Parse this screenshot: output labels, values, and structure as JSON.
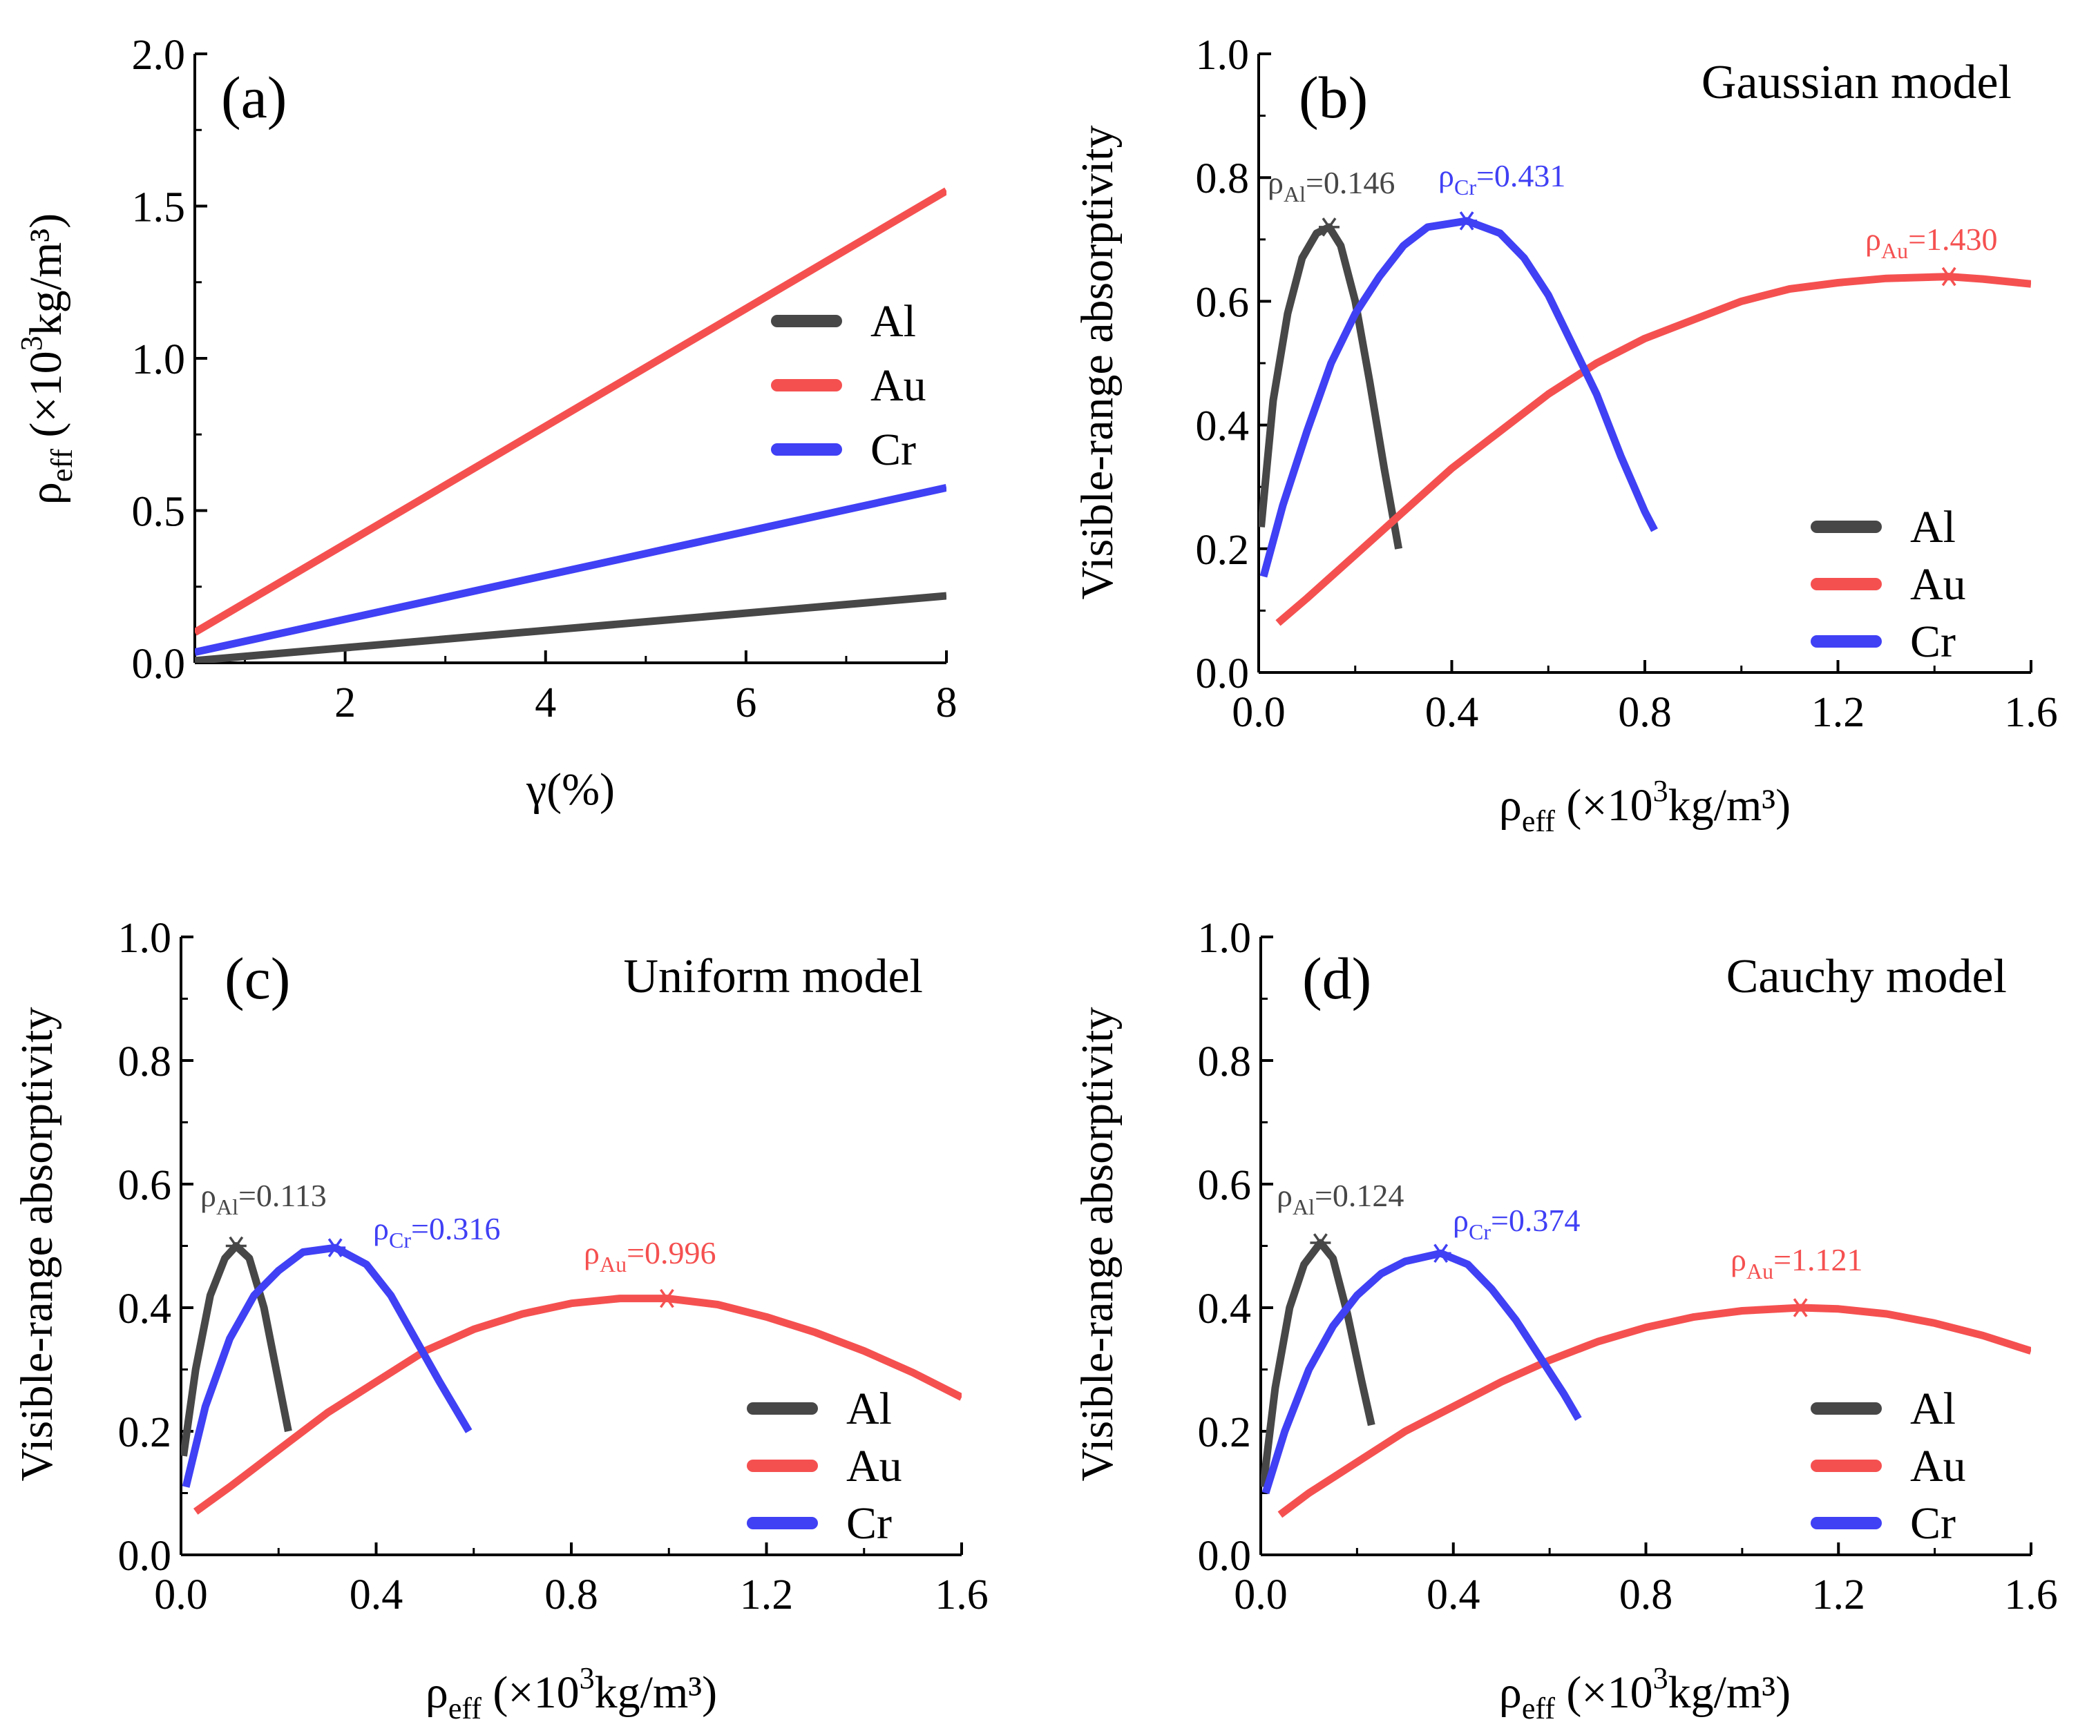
{
  "colors": {
    "Al": "#474747",
    "Au": "#f55050",
    "Cr": "#4040f5",
    "axis": "#000000"
  },
  "chart_data": [
    {
      "id": "a",
      "type": "line",
      "panel_label": "(a)",
      "title": "",
      "xlabel": "γ(%)",
      "ylabel": {
        "base": "ρ",
        "sub": "eff",
        "rest": " (×10",
        "sup": "3",
        "unit": "kg/m³)"
      },
      "xlim": [
        0.5,
        8
      ],
      "ylim": [
        0,
        2.0
      ],
      "xticks": [
        2,
        4,
        6,
        8
      ],
      "xtick_labels": [
        "2",
        "4",
        "6",
        "8"
      ],
      "yticks": [
        0,
        0.5,
        1.0,
        1.5,
        2.0
      ],
      "ytick_labels": [
        "0.0",
        "0.5",
        "1.0",
        "1.5",
        "2.0"
      ],
      "legend": [
        "Al",
        "Au",
        "Cr"
      ],
      "legend_position": "center-right",
      "series": [
        {
          "name": "Al",
          "x": [
            0.5,
            8
          ],
          "y": [
            0.007,
            0.22
          ]
        },
        {
          "name": "Au",
          "x": [
            0.5,
            8
          ],
          "y": [
            0.1,
            1.55
          ]
        },
        {
          "name": "Cr",
          "x": [
            0.5,
            8
          ],
          "y": [
            0.035,
            0.575
          ]
        }
      ],
      "annotations": []
    },
    {
      "id": "b",
      "type": "line",
      "panel_label": "(b)",
      "title": "Gaussian model",
      "xlabel": {
        "base": "ρ",
        "sub": "eff",
        "rest": " (×10",
        "sup": "3",
        "unit": "kg/m³)"
      },
      "ylabel": "Visible-range absorptivity",
      "xlim": [
        0,
        1.6
      ],
      "ylim": [
        0,
        1.0
      ],
      "xticks": [
        0,
        0.4,
        0.8,
        1.2,
        1.6
      ],
      "xtick_labels": [
        "0.0",
        "0.4",
        "0.8",
        "1.2",
        "1.6"
      ],
      "yticks": [
        0,
        0.2,
        0.4,
        0.6,
        0.8,
        1.0
      ],
      "ytick_labels": [
        "0.0",
        "0.2",
        "0.4",
        "0.6",
        "0.8",
        "1.0"
      ],
      "legend": [
        "Al",
        "Au",
        "Cr"
      ],
      "legend_position": "bottom-right",
      "series": [
        {
          "name": "Al",
          "x": [
            0.005,
            0.03,
            0.06,
            0.09,
            0.12,
            0.146,
            0.17,
            0.2,
            0.23,
            0.26,
            0.29
          ],
          "y": [
            0.235,
            0.44,
            0.58,
            0.67,
            0.71,
            0.72,
            0.69,
            0.6,
            0.47,
            0.33,
            0.2
          ]
        },
        {
          "name": "Au",
          "x": [
            0.04,
            0.1,
            0.2,
            0.3,
            0.4,
            0.5,
            0.6,
            0.7,
            0.8,
            0.9,
            1.0,
            1.1,
            1.2,
            1.3,
            1.43,
            1.5,
            1.6
          ],
          "y": [
            0.08,
            0.12,
            0.19,
            0.26,
            0.33,
            0.39,
            0.45,
            0.5,
            0.54,
            0.57,
            0.6,
            0.62,
            0.63,
            0.637,
            0.64,
            0.636,
            0.628
          ]
        },
        {
          "name": "Cr",
          "x": [
            0.01,
            0.05,
            0.1,
            0.15,
            0.2,
            0.25,
            0.3,
            0.35,
            0.431,
            0.5,
            0.55,
            0.6,
            0.65,
            0.7,
            0.75,
            0.8,
            0.82
          ],
          "y": [
            0.155,
            0.27,
            0.39,
            0.5,
            0.58,
            0.64,
            0.69,
            0.72,
            0.73,
            0.71,
            0.67,
            0.61,
            0.53,
            0.45,
            0.35,
            0.26,
            0.23
          ]
        }
      ],
      "markers": [
        {
          "series": "Al",
          "x": 0.146,
          "y": 0.72
        },
        {
          "series": "Cr",
          "x": 0.431,
          "y": 0.73
        },
        {
          "series": "Au",
          "x": 1.43,
          "y": 0.64
        }
      ],
      "annotations": [
        {
          "series": "Al",
          "text": "0.146",
          "sub": "Al"
        },
        {
          "series": "Cr",
          "text": "0.431",
          "sub": "Cr"
        },
        {
          "series": "Au",
          "text": "1.430",
          "sub": "Au"
        }
      ]
    },
    {
      "id": "c",
      "type": "line",
      "panel_label": "(c)",
      "title": "Uniform model",
      "xlabel": {
        "base": "ρ",
        "sub": "eff",
        "rest": " (×10",
        "sup": "3",
        "unit": "kg/m³)"
      },
      "ylabel": "Visible-range absorptivity",
      "xlim": [
        0,
        1.6
      ],
      "ylim": [
        0,
        1.0
      ],
      "xticks": [
        0,
        0.4,
        0.8,
        1.2,
        1.6
      ],
      "xtick_labels": [
        "0.0",
        "0.4",
        "0.8",
        "1.2",
        "1.6"
      ],
      "yticks": [
        0,
        0.2,
        0.4,
        0.6,
        0.8,
        1.0
      ],
      "ytick_labels": [
        "0.0",
        "0.2",
        "0.4",
        "0.6",
        "0.8",
        "1.0"
      ],
      "legend": [
        "Al",
        "Au",
        "Cr"
      ],
      "legend_position": "bottom-right",
      "series": [
        {
          "name": "Al",
          "x": [
            0.005,
            0.03,
            0.06,
            0.09,
            0.113,
            0.14,
            0.17,
            0.2,
            0.22
          ],
          "y": [
            0.16,
            0.3,
            0.42,
            0.48,
            0.5,
            0.48,
            0.4,
            0.28,
            0.2
          ]
        },
        {
          "name": "Au",
          "x": [
            0.03,
            0.1,
            0.2,
            0.3,
            0.4,
            0.5,
            0.6,
            0.7,
            0.8,
            0.9,
            0.996,
            1.1,
            1.2,
            1.3,
            1.4,
            1.5,
            1.6
          ],
          "y": [
            0.07,
            0.11,
            0.17,
            0.23,
            0.28,
            0.33,
            0.365,
            0.39,
            0.407,
            0.415,
            0.415,
            0.405,
            0.385,
            0.36,
            0.33,
            0.295,
            0.255
          ]
        },
        {
          "name": "Cr",
          "x": [
            0.01,
            0.05,
            0.1,
            0.15,
            0.2,
            0.25,
            0.316,
            0.38,
            0.43,
            0.48,
            0.53,
            0.59
          ],
          "y": [
            0.11,
            0.24,
            0.35,
            0.42,
            0.46,
            0.49,
            0.497,
            0.47,
            0.42,
            0.35,
            0.28,
            0.2
          ]
        }
      ],
      "markers": [
        {
          "series": "Al",
          "x": 0.113,
          "y": 0.5
        },
        {
          "series": "Cr",
          "x": 0.316,
          "y": 0.497
        },
        {
          "series": "Au",
          "x": 0.996,
          "y": 0.415
        }
      ],
      "annotations": [
        {
          "series": "Al",
          "text": "0.113",
          "sub": "Al"
        },
        {
          "series": "Cr",
          "text": "0.316",
          "sub": "Cr"
        },
        {
          "series": "Au",
          "text": "0.996",
          "sub": "Au"
        }
      ]
    },
    {
      "id": "d",
      "type": "line",
      "panel_label": "(d)",
      "title": "Cauchy model",
      "xlabel": {
        "base": "ρ",
        "sub": "eff",
        "rest": " (×10",
        "sup": "3",
        "unit": "kg/m³)"
      },
      "ylabel": "Visible-range absorptivity",
      "xlim": [
        0,
        1.6
      ],
      "ylim": [
        0,
        1.0
      ],
      "xticks": [
        0,
        0.4,
        0.8,
        1.2,
        1.6
      ],
      "xtick_labels": [
        "0.0",
        "0.4",
        "0.8",
        "1.2",
        "1.6"
      ],
      "yticks": [
        0,
        0.2,
        0.4,
        0.6,
        0.8,
        1.0
      ],
      "ytick_labels": [
        "0.0",
        "0.2",
        "0.4",
        "0.6",
        "0.8",
        "1.0"
      ],
      "legend": [
        "Al",
        "Au",
        "Cr"
      ],
      "legend_position": "bottom-right",
      "series": [
        {
          "name": "Al",
          "x": [
            0.005,
            0.03,
            0.06,
            0.09,
            0.124,
            0.15,
            0.18,
            0.21,
            0.23
          ],
          "y": [
            0.11,
            0.27,
            0.4,
            0.47,
            0.505,
            0.48,
            0.39,
            0.28,
            0.21
          ]
        },
        {
          "name": "Au",
          "x": [
            0.04,
            0.1,
            0.2,
            0.3,
            0.4,
            0.5,
            0.6,
            0.7,
            0.8,
            0.9,
            1.0,
            1.121,
            1.2,
            1.3,
            1.4,
            1.5,
            1.6
          ],
          "y": [
            0.065,
            0.1,
            0.15,
            0.2,
            0.24,
            0.28,
            0.315,
            0.345,
            0.368,
            0.385,
            0.395,
            0.4,
            0.398,
            0.39,
            0.375,
            0.355,
            0.33
          ]
        },
        {
          "name": "Cr",
          "x": [
            0.01,
            0.05,
            0.1,
            0.15,
            0.2,
            0.25,
            0.3,
            0.374,
            0.43,
            0.48,
            0.53,
            0.58,
            0.63,
            0.66
          ],
          "y": [
            0.1,
            0.2,
            0.3,
            0.37,
            0.42,
            0.455,
            0.475,
            0.488,
            0.47,
            0.43,
            0.38,
            0.32,
            0.26,
            0.22
          ]
        }
      ],
      "markers": [
        {
          "series": "Al",
          "x": 0.124,
          "y": 0.505
        },
        {
          "series": "Cr",
          "x": 0.374,
          "y": 0.488
        },
        {
          "series": "Au",
          "x": 1.121,
          "y": 0.4
        }
      ],
      "annotations": [
        {
          "series": "Al",
          "text": "0.124",
          "sub": "Al"
        },
        {
          "series": "Cr",
          "text": "0.374",
          "sub": "Cr"
        },
        {
          "series": "Au",
          "text": "1.121",
          "sub": "Au"
        }
      ]
    }
  ]
}
